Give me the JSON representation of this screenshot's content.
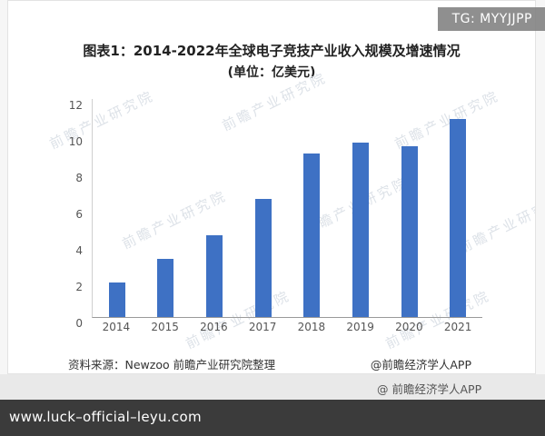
{
  "overlay": {
    "tg_label": "TG: MYYJJPP",
    "gray_strip_text": "@ 前瞻经济学人APP",
    "bottom_bar_text": "www.luck–official–leyu.com"
  },
  "chart": {
    "title_line1": "图表1：2014-2022年全球电子竞技产业收入规模及增速情况",
    "title_line2": "(单位：亿美元)",
    "source_text": "资料来源：Newzoo 前瞻产业研究院整理",
    "credit_text": "@前瞻经济学人APP",
    "watermark_text": "前瞻产业研究院",
    "bar_color": "#3e71c4"
  },
  "chart_data": {
    "type": "bar",
    "title": "2014-2022年全球电子竞技产业收入规模及增速情况",
    "unit": "亿美元",
    "categories": [
      "2014",
      "2015",
      "2016",
      "2017",
      "2018",
      "2019",
      "2020",
      "2021"
    ],
    "values": [
      1.9,
      3.2,
      4.5,
      6.5,
      9.0,
      9.6,
      9.4,
      10.9
    ],
    "xlabel": "",
    "ylabel": "",
    "ylim": [
      0,
      12
    ],
    "yticks": [
      0,
      2,
      4,
      6,
      8,
      10,
      12
    ],
    "grid": false,
    "legend": false,
    "bar_color": "#3e71c4"
  }
}
